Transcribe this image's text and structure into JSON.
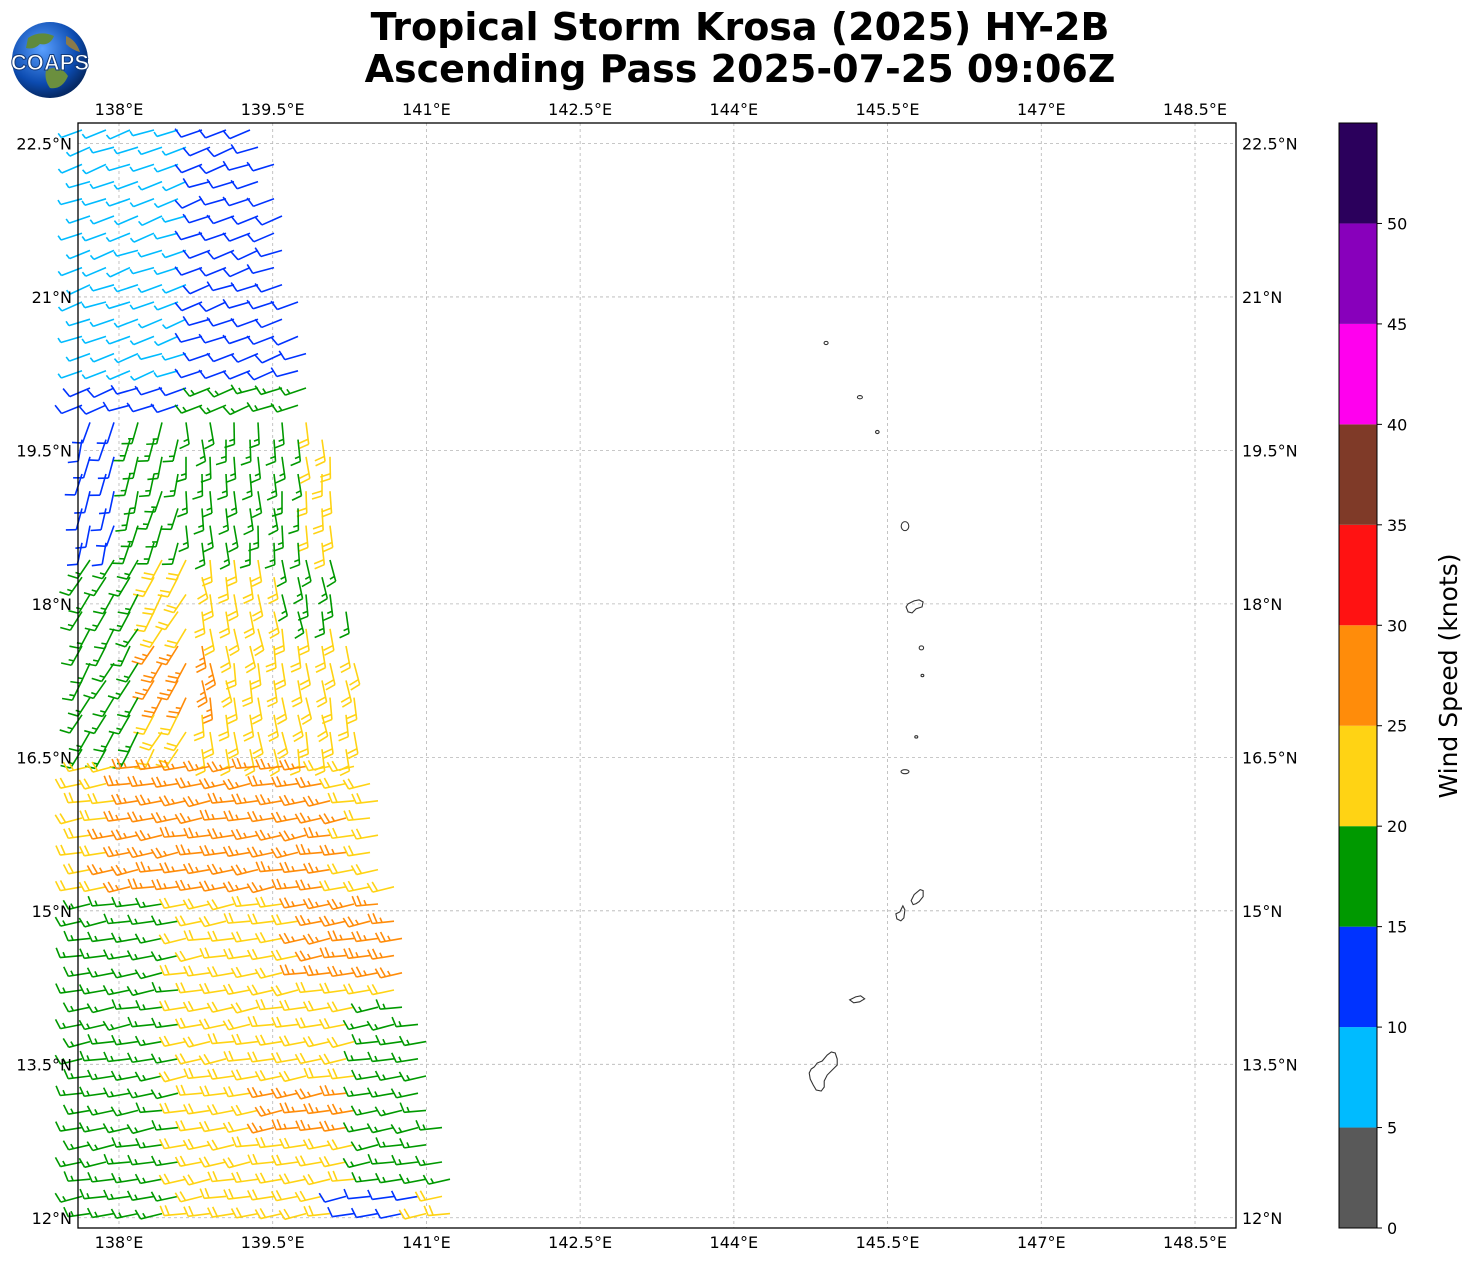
{
  "title": {
    "line1": "Tropical Storm Krosa (2025) HY-2B",
    "line2": "Ascending Pass 2025-07-25 09:06Z"
  },
  "logo": {
    "text": "COAPS"
  },
  "map": {
    "lon_range": [
      137.6,
      148.9
    ],
    "lat_range": [
      11.9,
      22.7
    ],
    "lon_ticks": [
      "138°E",
      "139.5°E",
      "141°E",
      "142.5°E",
      "144°E",
      "145.5°E",
      "147°E",
      "148.5°E"
    ],
    "lat_ticks": [
      "22.5°N",
      "21°N",
      "19.5°N",
      "18°N",
      "16.5°N",
      "15°N",
      "13.5°N",
      "12°N"
    ],
    "gridlines": true,
    "swath_description": "HY-2B scatterometer wind barbs over western part of map",
    "islands": [
      "Farallon de Pajaros",
      "Maug",
      "Asuncion",
      "Agrihan",
      "Pagan",
      "Alamagan",
      "Guguan",
      "Sarigan",
      "Anatahan",
      "Saipan",
      "Tinian",
      "Rota",
      "Guam"
    ]
  },
  "colorbar": {
    "label": "Wind Speed (knots)",
    "ticks": [
      "0",
      "5",
      "10",
      "15",
      "20",
      "25",
      "30",
      "35",
      "40",
      "45",
      "50"
    ],
    "bins": [
      {
        "min": 0,
        "max": 5,
        "color": "#595959"
      },
      {
        "min": 5,
        "max": 10,
        "color": "#00bbff"
      },
      {
        "min": 10,
        "max": 15,
        "color": "#0033ff"
      },
      {
        "min": 15,
        "max": 20,
        "color": "#009900"
      },
      {
        "min": 20,
        "max": 25,
        "color": "#ffd314"
      },
      {
        "min": 25,
        "max": 30,
        "color": "#ff8c0a"
      },
      {
        "min": 30,
        "max": 35,
        "color": "#ff1212"
      },
      {
        "min": 35,
        "max": 40,
        "color": "#7f3a28"
      },
      {
        "min": 40,
        "max": 45,
        "color": "#ff00ee"
      },
      {
        "min": 45,
        "max": 50,
        "color": "#8800bb"
      },
      {
        "min": 50,
        "max": 55,
        "color": "#2b005c"
      }
    ]
  }
}
